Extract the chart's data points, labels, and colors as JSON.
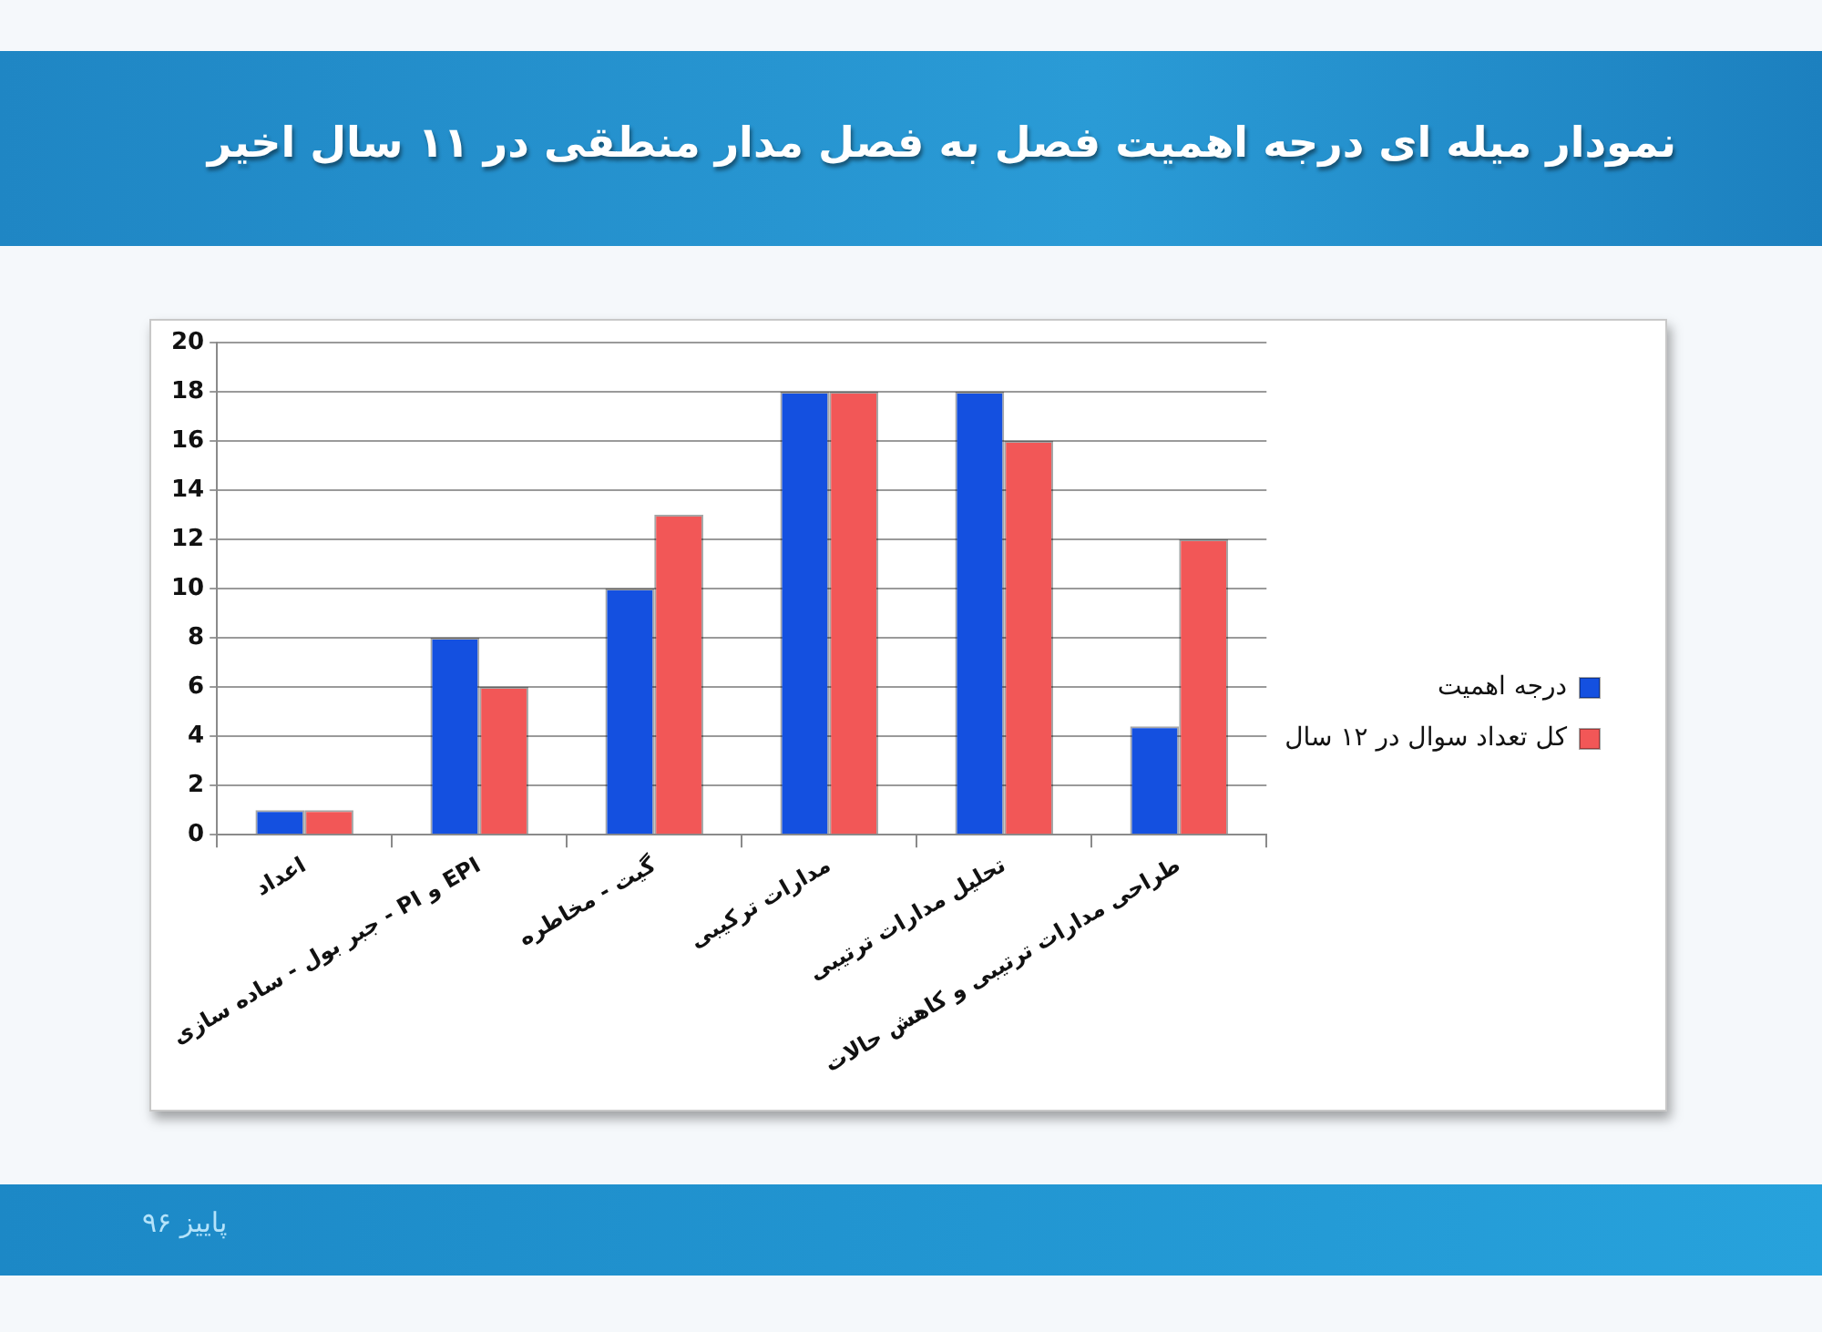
{
  "chart_data": {
    "type": "bar",
    "title": "نمودار میله ای درجه اهمیت فصل به فصل مدار منطقی در ۱۱ سال اخیر",
    "categories": [
      "اعداد",
      "جبر بول - ساده سازی - PI و EPI",
      "گیت - مخاطره",
      "مدارات ترکیبی",
      "تحلیل مدارات ترتیبی",
      "طراحی مدارات ترتیبی و کاهش حالات"
    ],
    "series": [
      {
        "name": "درجه اهمیت",
        "color": "#1450e0",
        "values": [
          1,
          8,
          10,
          18,
          18,
          4.4
        ]
      },
      {
        "name": "کل تعداد سوال در ۱۲ سال",
        "color": "#f25757",
        "values": [
          1,
          6,
          13,
          18,
          16,
          12
        ]
      }
    ],
    "ylim": [
      0,
      20
    ],
    "yticks": [
      0,
      2,
      4,
      6,
      8,
      10,
      12,
      14,
      16,
      18,
      20
    ],
    "grid": "y",
    "legend": "right",
    "annotations": [
      "پاییز ۹۶"
    ]
  }
}
